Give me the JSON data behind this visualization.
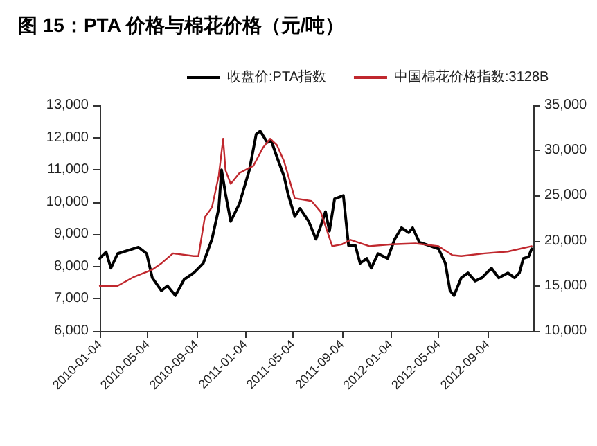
{
  "chart_data": {
    "type": "line",
    "title": "图 15：PTA 价格与棉花价格（元/吨）",
    "xlim": [
      "2010-01-04",
      "2012-12-28"
    ],
    "xticks": [
      "2010-01-04",
      "2010-05-04",
      "2010-09-04",
      "2011-01-04",
      "2011-05-04",
      "2011-09-04",
      "2012-01-04",
      "2012-05-04",
      "2012-09-04"
    ],
    "ylim": [
      6000,
      13000
    ],
    "yticks": [
      {
        "value": 6000,
        "label": "6,000"
      },
      {
        "value": 7000,
        "label": "7,000"
      },
      {
        "value": 8000,
        "label": "8,000"
      },
      {
        "value": 9000,
        "label": "9,000"
      },
      {
        "value": 10000,
        "label": "10,000"
      },
      {
        "value": 11000,
        "label": "11,000"
      },
      {
        "value": 12000,
        "label": "12,000"
      },
      {
        "value": 13000,
        "label": "13,000"
      }
    ],
    "y2lim": [
      10000,
      35000
    ],
    "y2ticks": [
      {
        "value": 10000,
        "label": "10,000"
      },
      {
        "value": 15000,
        "label": "15,000"
      },
      {
        "value": 20000,
        "label": "20,000"
      },
      {
        "value": 25000,
        "label": "25,000"
      },
      {
        "value": 30000,
        "label": "30,000"
      },
      {
        "value": 35000,
        "label": "35,000"
      }
    ],
    "legend": "top",
    "grid": false,
    "marker": "none",
    "line_style": "solid",
    "series": [
      {
        "name": "收盘价:PTA指数",
        "color": "#000000",
        "x": [
          "2010-01-04",
          "2010-01-20",
          "2010-02-01",
          "2010-02-18",
          "2010-04-11",
          "2010-05-02",
          "2010-05-16",
          "2010-06-08",
          "2010-06-23",
          "2010-07-13",
          "2010-08-04",
          "2010-08-28",
          "2010-09-21",
          "2010-10-13",
          "2010-10-30",
          "2010-11-06",
          "2010-11-16",
          "2010-11-29",
          "2010-12-21",
          "2011-01-15",
          "2011-02-01",
          "2011-02-11",
          "2011-03-01",
          "2011-03-11",
          "2011-03-25",
          "2011-04-12",
          "2011-04-22",
          "2011-05-09",
          "2011-05-22",
          "2011-06-13",
          "2011-07-01",
          "2011-07-13",
          "2011-07-25",
          "2011-08-04",
          "2011-08-17",
          "2011-09-08",
          "2011-09-21",
          "2011-10-08",
          "2011-10-20",
          "2011-11-06",
          "2011-11-17",
          "2011-12-04",
          "2011-12-28",
          "2012-01-15",
          "2012-02-01",
          "2012-02-19",
          "2012-02-29",
          "2012-03-17",
          "2012-04-11",
          "2012-05-04",
          "2012-05-21",
          "2012-06-02",
          "2012-06-12",
          "2012-06-30",
          "2012-07-17",
          "2012-08-04",
          "2012-08-21",
          "2012-09-14",
          "2012-10-02",
          "2012-10-25",
          "2012-11-11",
          "2012-11-23",
          "2012-12-03",
          "2012-12-16",
          "2012-12-24"
        ],
        "values": [
          8250,
          8450,
          7950,
          8400,
          8600,
          8400,
          7650,
          7250,
          7400,
          7100,
          7600,
          7800,
          8100,
          8850,
          9800,
          11000,
          10250,
          9400,
          9950,
          11000,
          12100,
          12200,
          11850,
          11900,
          11400,
          10800,
          10250,
          9550,
          9800,
          9400,
          8850,
          9250,
          9700,
          9100,
          10100,
          10200,
          8650,
          8650,
          8100,
          8250,
          7950,
          8400,
          8250,
          8850,
          9200,
          9050,
          9200,
          8750,
          8650,
          8550,
          8100,
          7250,
          7100,
          7650,
          7800,
          7550,
          7650,
          7950,
          7650,
          7800,
          7650,
          7800,
          8250,
          8300,
          8550
        ]
      },
      {
        "name": "中国棉花价格指数:3128B",
        "color": "#c0282e",
        "axis": "y2",
        "x": [
          "2010-01-04",
          "2010-02-18",
          "2010-03-31",
          "2010-05-16",
          "2010-06-08",
          "2010-07-07",
          "2010-08-28",
          "2010-09-09",
          "2010-09-25",
          "2010-10-13",
          "2010-10-30",
          "2010-11-10",
          "2010-11-16",
          "2010-11-29",
          "2010-12-21",
          "2011-01-25",
          "2011-02-18",
          "2011-03-08",
          "2011-03-25",
          "2011-04-12",
          "2011-05-09",
          "2011-06-20",
          "2011-07-13",
          "2011-08-11",
          "2011-09-04",
          "2011-09-26",
          "2011-11-12",
          "2012-01-08",
          "2012-03-07",
          "2012-05-04",
          "2012-06-08",
          "2012-06-30",
          "2012-08-28",
          "2012-10-25",
          "2012-12-24"
        ],
        "values": [
          15000,
          15000,
          16000,
          16800,
          17500,
          18600,
          18300,
          18300,
          22600,
          23700,
          27200,
          31300,
          27800,
          26300,
          27500,
          28300,
          30300,
          31300,
          30600,
          28800,
          24700,
          24400,
          23200,
          19400,
          19600,
          20100,
          19400,
          19600,
          19700,
          19400,
          18400,
          18300,
          18600,
          18800,
          19400
        ]
      }
    ]
  }
}
